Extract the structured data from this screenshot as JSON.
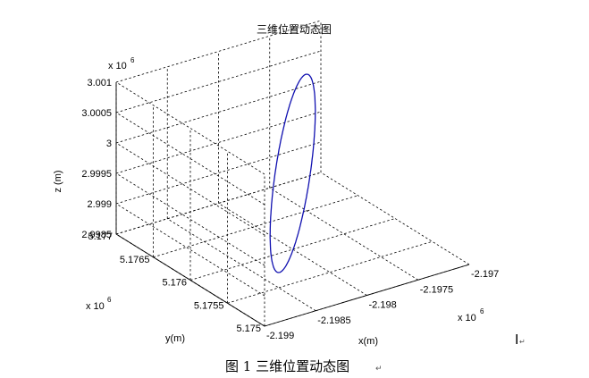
{
  "chart_data": {
    "type": "line",
    "title": "三维位置动态图",
    "xlabel": "x(m)",
    "ylabel": "y(m)",
    "zlabel": "z (m)",
    "x_exponent_label": "x 10",
    "y_exponent_label": "x 10",
    "z_exponent_label": "x 10",
    "exponent_superscript": "6",
    "xlim": [
      -2.199,
      -2.197
    ],
    "ylim": [
      5.175,
      5.177
    ],
    "zlim": [
      2.9985,
      3.001
    ],
    "x_ticks": [
      "-2.199",
      "-2.1985",
      "-2.198",
      "-2.1975",
      "-2.197"
    ],
    "y_ticks": [
      "5.175",
      "5.1755",
      "5.176",
      "5.1765",
      "5.177"
    ],
    "z_ticks": [
      "2.9985",
      "2.999",
      "2.9995",
      "3",
      "3.0005",
      "3.001"
    ],
    "grid": true,
    "series": [
      {
        "color": "#1010b0",
        "shape": "closed-ellipse",
        "center": {
          "x": -2.198,
          "y": 5.176,
          "z": 2.99975
        },
        "endpoint_a": {
          "x": -2.1985,
          "y": 5.1755,
          "z": 2.99875
        },
        "endpoint_b": {
          "x": -2.1975,
          "y": 5.1765,
          "z": 3.00075
        },
        "minor_semi_axis": {
          "x": 0.0001,
          "y": -0.0001,
          "z": 3e-05
        }
      }
    ]
  },
  "caption": "图 1  三维位置动态图",
  "caption_mark": "↵",
  "cursor_mark": "I",
  "cursor_mark_small": "↵"
}
